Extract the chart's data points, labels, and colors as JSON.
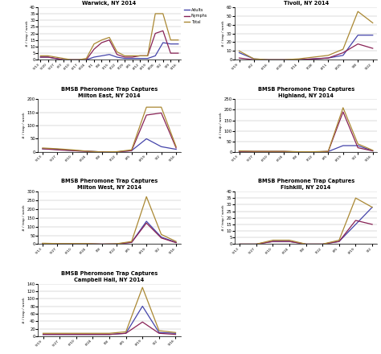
{
  "title": "BMSB Pheromone Trap Captures",
  "ylabel": "# / trap / week",
  "line_colors": {
    "Adults": "#4444aa",
    "Nymphs": "#882255",
    "Total": "#aa8833"
  },
  "legend_labels": [
    "Adults",
    "Nymphs",
    "Total"
  ],
  "subplots": [
    {
      "subtitle": "Warwick, NY 2014",
      "xlabels": [
        "5/13",
        "5/20",
        "5/27",
        "6/3",
        "6/10",
        "6/17",
        "6/24",
        "7/1",
        "7/8",
        "7/15",
        "7/22",
        "7/29",
        "8/5",
        "8/12",
        "8/19",
        "8/26",
        "9/2",
        "9/9",
        "9/16"
      ],
      "ylim": [
        0,
        40
      ],
      "yticks": [
        0,
        5,
        10,
        15,
        20,
        25,
        30,
        35,
        40
      ],
      "Adults": [
        2,
        2,
        1,
        0,
        0,
        0,
        0,
        2,
        3,
        4,
        2,
        1,
        1,
        1,
        1,
        3,
        13,
        12,
        12
      ],
      "Nymphs": [
        2,
        2,
        1,
        0,
        0,
        0,
        0,
        8,
        13,
        15,
        4,
        2,
        2,
        3,
        3,
        20,
        22,
        5,
        5
      ],
      "Total": [
        3,
        3,
        2,
        1,
        0,
        0,
        1,
        12,
        15,
        17,
        6,
        3,
        3,
        3,
        3,
        35,
        35,
        15,
        15
      ],
      "show_legend": true
    },
    {
      "subtitle": "Tivoli, NY 2014",
      "xlabels": [
        "5/19",
        "6/2",
        "6/16",
        "6/30",
        "7/14",
        "7/28",
        "8/11",
        "8/25",
        "9/8",
        "9/22"
      ],
      "ylim": [
        0,
        60
      ],
      "yticks": [
        0,
        10,
        20,
        30,
        40,
        50,
        60
      ],
      "Adults": [
        8,
        1,
        0,
        0,
        0,
        1,
        2,
        5,
        28,
        28
      ],
      "Nymphs": [
        2,
        0,
        0,
        0,
        0,
        1,
        2,
        8,
        18,
        13
      ],
      "Total": [
        10,
        1,
        0,
        0,
        1,
        3,
        5,
        12,
        55,
        42
      ],
      "show_legend": false
    },
    {
      "subtitle": "Milton East, NY 2014",
      "xlabels": [
        "5/13",
        "5/27",
        "6/10",
        "6/24",
        "7/8",
        "7/22",
        "8/5",
        "8/19",
        "9/2",
        "9/16"
      ],
      "ylim": [
        0,
        200
      ],
      "yticks": [
        0,
        50,
        100,
        150,
        200
      ],
      "Adults": [
        12,
        10,
        5,
        3,
        0,
        0,
        5,
        50,
        20,
        10
      ],
      "Nymphs": [
        12,
        8,
        5,
        2,
        0,
        0,
        5,
        140,
        148,
        15
      ],
      "Total": [
        15,
        12,
        8,
        3,
        0,
        1,
        8,
        170,
        170,
        20
      ],
      "show_legend": false
    },
    {
      "subtitle": "Highland, NY 2014",
      "xlabels": [
        "5/13",
        "5/27",
        "6/10",
        "6/24",
        "7/8",
        "7/22",
        "8/5",
        "8/19",
        "9/2",
        "9/16"
      ],
      "ylim": [
        0,
        250
      ],
      "yticks": [
        0,
        50,
        100,
        150,
        200,
        250
      ],
      "Adults": [
        3,
        2,
        2,
        2,
        0,
        0,
        2,
        30,
        30,
        5
      ],
      "Nymphs": [
        3,
        2,
        2,
        2,
        0,
        0,
        2,
        190,
        20,
        5
      ],
      "Total": [
        5,
        3,
        3,
        3,
        1,
        1,
        3,
        210,
        38,
        8
      ],
      "show_legend": false
    },
    {
      "subtitle": "Milton West, NY 2014",
      "xlabels": [
        "5/13",
        "5/27",
        "6/10",
        "6/24",
        "7/8",
        "7/22",
        "8/5",
        "8/19",
        "9/2",
        "9/16"
      ],
      "ylim": [
        0,
        300
      ],
      "yticks": [
        0,
        50,
        100,
        150,
        200,
        250,
        300
      ],
      "Adults": [
        3,
        2,
        2,
        2,
        0,
        1,
        10,
        130,
        40,
        10
      ],
      "Nymphs": [
        3,
        2,
        2,
        2,
        0,
        1,
        10,
        120,
        35,
        8
      ],
      "Total": [
        5,
        3,
        3,
        3,
        0,
        2,
        15,
        270,
        55,
        15
      ],
      "show_legend": false
    },
    {
      "subtitle": "Fishkill, NY 2014",
      "xlabels": [
        "5/13",
        "5/27",
        "6/10",
        "6/24",
        "7/8",
        "7/22",
        "8/5",
        "8/19",
        "9/2"
      ],
      "ylim": [
        0,
        40
      ],
      "yticks": [
        0,
        5,
        10,
        15,
        20,
        25,
        30,
        35,
        40
      ],
      "Adults": [
        0,
        0,
        2,
        2,
        0,
        0,
        2,
        15,
        28
      ],
      "Nymphs": [
        0,
        0,
        2,
        2,
        0,
        0,
        2,
        18,
        15
      ],
      "Total": [
        0,
        0,
        3,
        3,
        0,
        0,
        3,
        35,
        28
      ],
      "show_legend": false
    },
    {
      "subtitle": "Campbell Hall, NY 2014",
      "xlabels": [
        "5/19",
        "5/27",
        "6/10",
        "6/24",
        "7/8",
        "8/5",
        "8/19",
        "9/2",
        "9/16"
      ],
      "ylim": [
        0,
        140
      ],
      "yticks": [
        0,
        20,
        40,
        60,
        80,
        100,
        120,
        140
      ],
      "Adults": [
        5,
        5,
        5,
        5,
        5,
        8,
        80,
        10,
        8
      ],
      "Nymphs": [
        5,
        5,
        5,
        5,
        5,
        8,
        38,
        8,
        5
      ],
      "Total": [
        8,
        8,
        8,
        8,
        8,
        12,
        130,
        15,
        10
      ],
      "show_legend": false
    }
  ]
}
